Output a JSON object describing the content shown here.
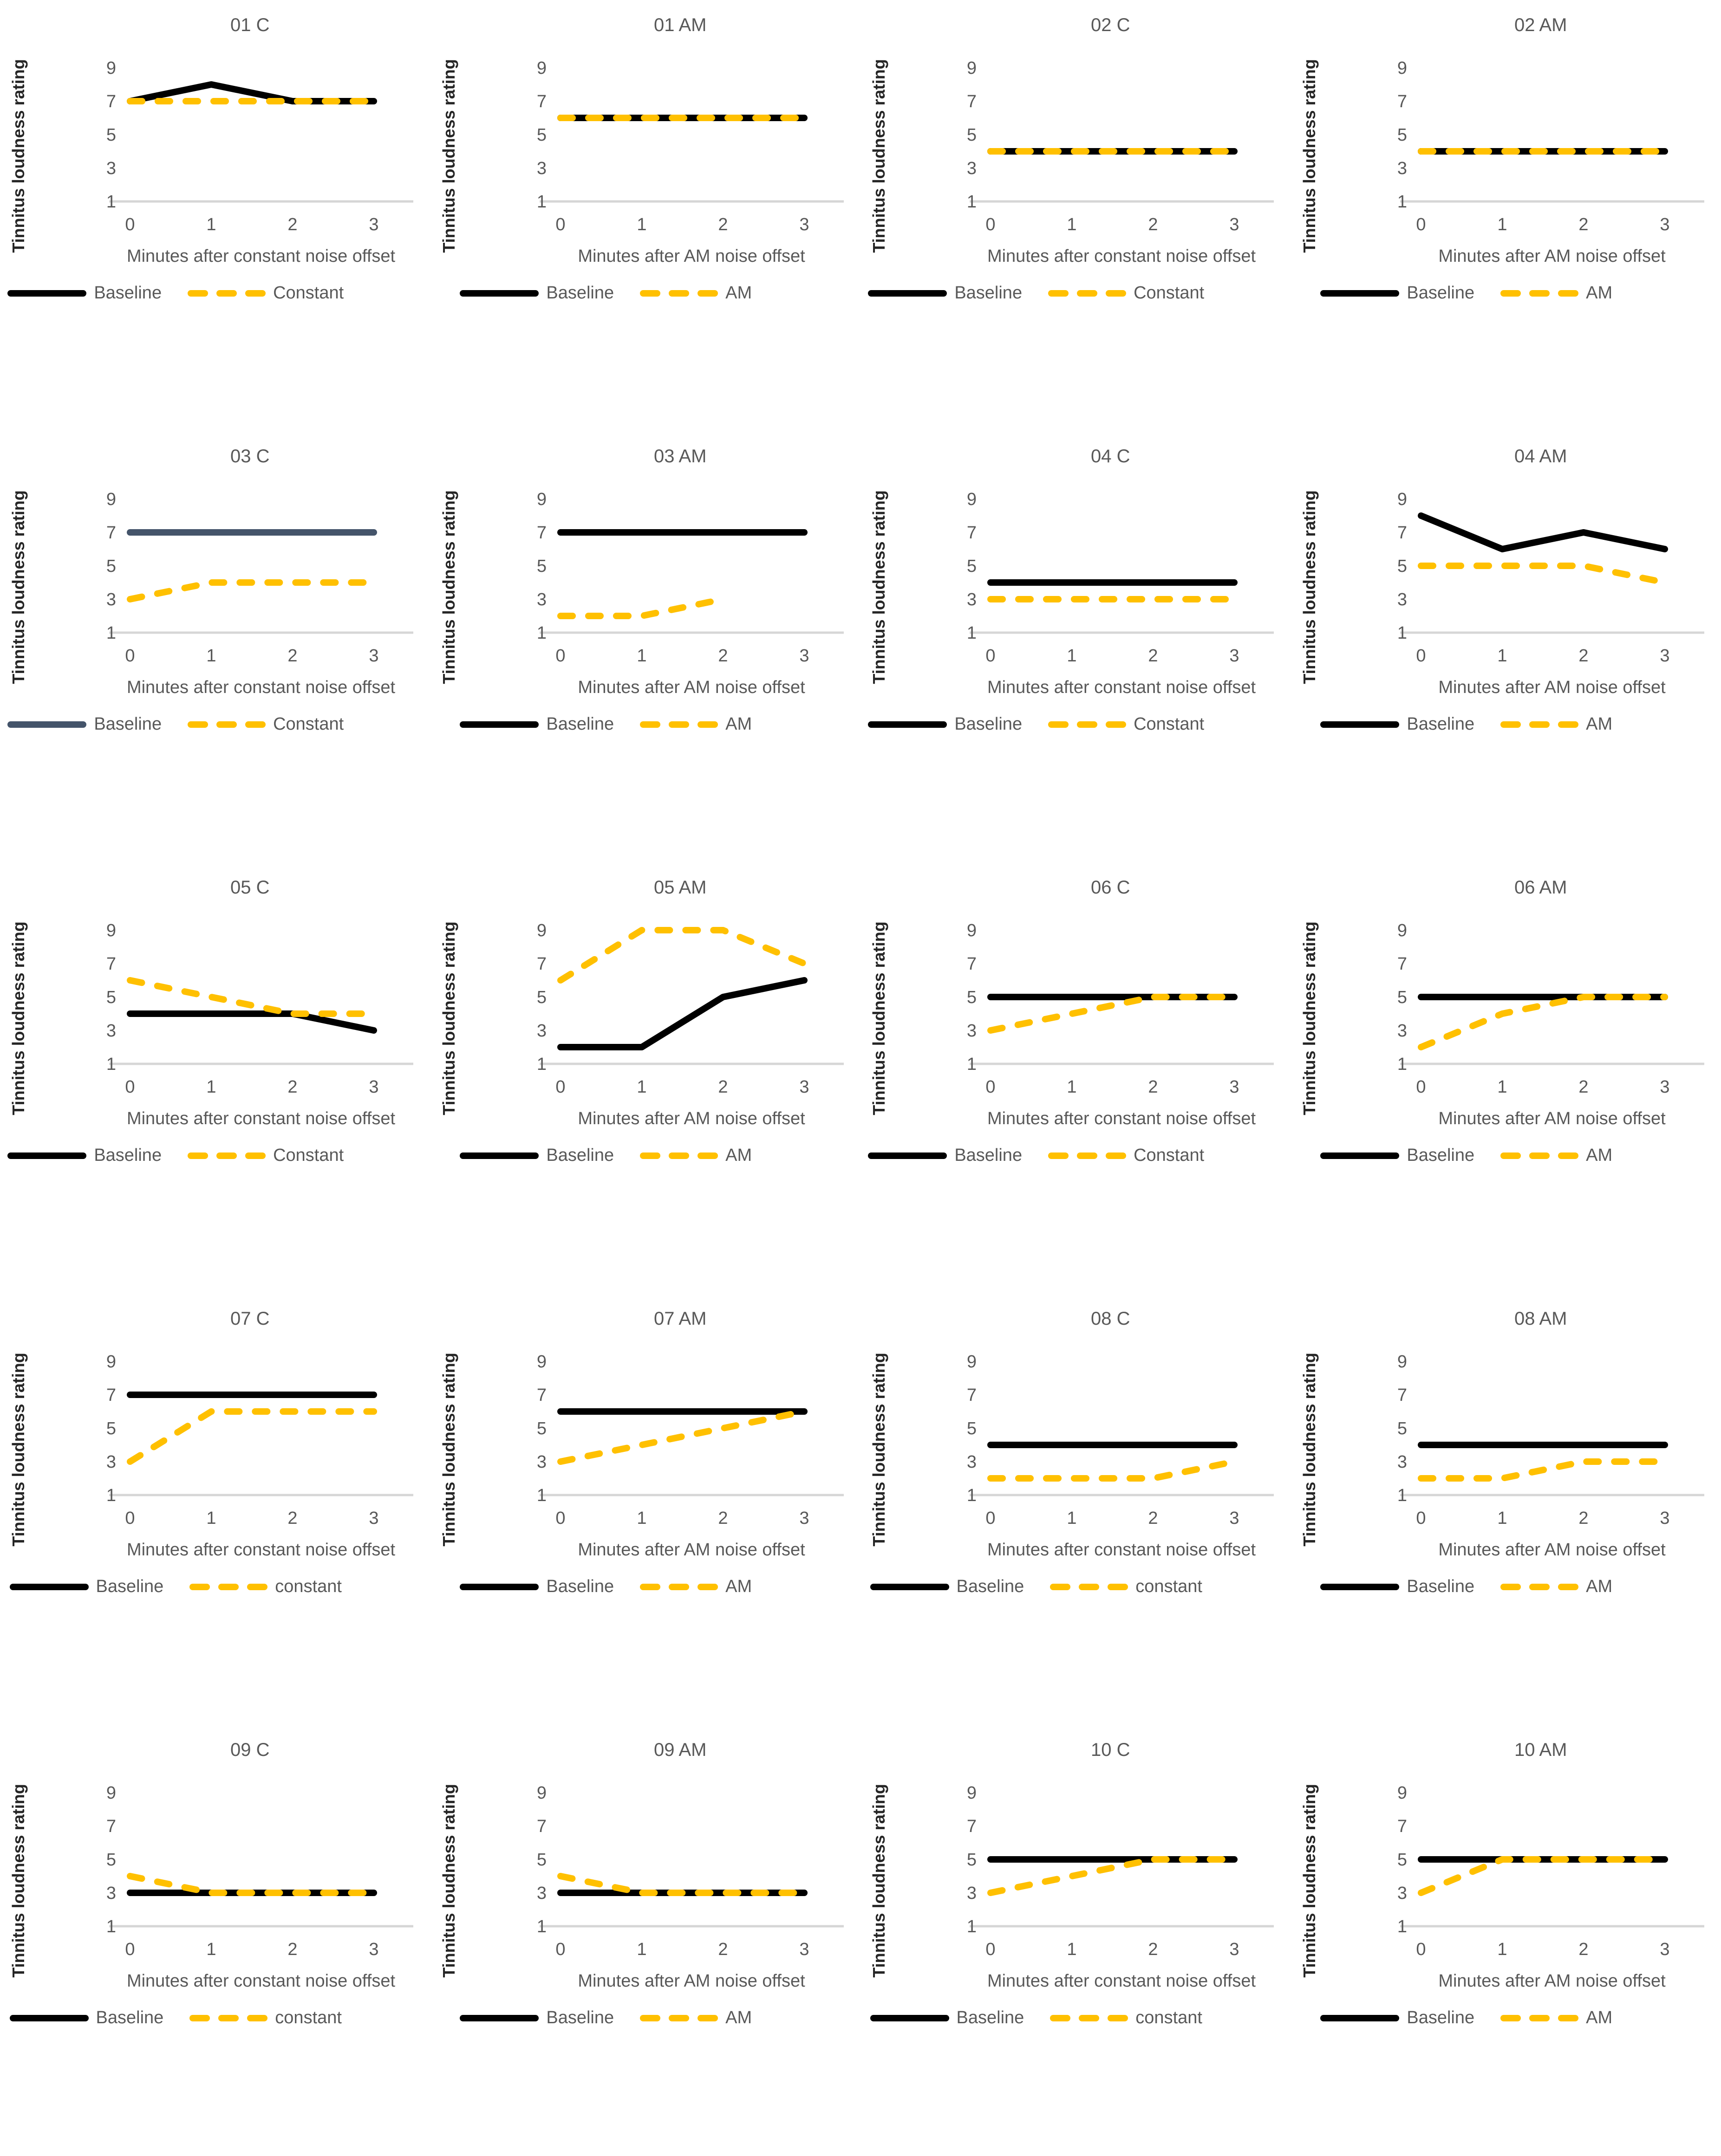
{
  "figure": {
    "ylabel": "Tinnitus loudness rating",
    "yticks": [
      9,
      7,
      5,
      3,
      1
    ],
    "xticks": [
      0,
      1,
      2,
      3
    ],
    "legend_baseline_label": "Baseline",
    "colors": {
      "baseline": "#000000",
      "baseline_alt": "#44546A",
      "treatment": "#FFC000",
      "axis_line": "#D6D6D6",
      "text": "#595959",
      "ylabel_text": "#262626"
    }
  },
  "chart_data": [
    {
      "type": "line",
      "title": "01 C",
      "xlabel": "Minutes after constant noise offset",
      "x": [
        0,
        1,
        2,
        3
      ],
      "ylim": [
        1,
        9
      ],
      "grid": false,
      "legend_position": "bottom",
      "series": [
        {
          "name": "Baseline",
          "values": [
            7,
            8,
            7,
            7
          ],
          "style": "solid"
        },
        {
          "name": "Constant",
          "values": [
            7,
            7,
            7,
            7
          ],
          "style": "dashed"
        }
      ]
    },
    {
      "type": "line",
      "title": "01 AM",
      "xlabel": "Minutes after AM noise offset",
      "x": [
        0,
        1,
        2,
        3
      ],
      "ylim": [
        1,
        9
      ],
      "grid": false,
      "legend_position": "bottom",
      "series": [
        {
          "name": "Baseline",
          "values": [
            6,
            6,
            6,
            6
          ],
          "style": "solid"
        },
        {
          "name": "AM",
          "values": [
            6,
            6,
            6,
            6
          ],
          "style": "dashed"
        }
      ]
    },
    {
      "type": "line",
      "title": "02 C",
      "xlabel": "Minutes after constant noise offset",
      "x": [
        0,
        1,
        2,
        3
      ],
      "ylim": [
        1,
        9
      ],
      "grid": false,
      "legend_position": "bottom",
      "series": [
        {
          "name": "Baseline",
          "values": [
            4,
            4,
            4,
            4
          ],
          "style": "solid"
        },
        {
          "name": "Constant",
          "values": [
            4,
            4,
            4,
            4
          ],
          "style": "dashed"
        }
      ]
    },
    {
      "type": "line",
      "title": "02 AM",
      "xlabel": "Minutes after AM noise offset",
      "x": [
        0,
        1,
        2,
        3
      ],
      "ylim": [
        1,
        9
      ],
      "grid": false,
      "legend_position": "bottom",
      "series": [
        {
          "name": "Baseline",
          "values": [
            4,
            4,
            4,
            4
          ],
          "style": "solid"
        },
        {
          "name": "AM",
          "values": [
            4,
            4,
            4,
            4
          ],
          "style": "dashed"
        }
      ]
    },
    {
      "type": "line",
      "title": "03 C",
      "xlabel": "Minutes after constant noise offset",
      "x": [
        0,
        1,
        2,
        3
      ],
      "ylim": [
        1,
        9
      ],
      "grid": false,
      "legend_position": "bottom",
      "baseline_color": "#44546A",
      "series": [
        {
          "name": "Baseline",
          "values": [
            7,
            7,
            7,
            7
          ],
          "style": "solid"
        },
        {
          "name": "Constant",
          "values": [
            3,
            4,
            4,
            4
          ],
          "style": "dashed"
        }
      ]
    },
    {
      "type": "line",
      "title": "03 AM",
      "xlabel": "Minutes after AM noise offset",
      "x": [
        0,
        1,
        2,
        3
      ],
      "ylim": [
        1,
        9
      ],
      "grid": false,
      "legend_position": "bottom",
      "series": [
        {
          "name": "Baseline",
          "values": [
            7,
            7,
            7,
            7
          ],
          "style": "solid"
        },
        {
          "name": "AM",
          "values": [
            2,
            2,
            3,
            null
          ],
          "style": "dashed"
        }
      ]
    },
    {
      "type": "line",
      "title": "04 C",
      "xlabel": "Minutes after constant noise offset",
      "x": [
        0,
        1,
        2,
        3
      ],
      "ylim": [
        1,
        9
      ],
      "grid": false,
      "legend_position": "bottom",
      "series": [
        {
          "name": "Baseline",
          "values": [
            4,
            4,
            4,
            4
          ],
          "style": "solid"
        },
        {
          "name": "Constant",
          "values": [
            3,
            3,
            3,
            3
          ],
          "style": "dashed"
        }
      ]
    },
    {
      "type": "line",
      "title": "04 AM",
      "xlabel": "Minutes after AM noise offset",
      "x": [
        0,
        1,
        2,
        3
      ],
      "ylim": [
        1,
        9
      ],
      "grid": false,
      "legend_position": "bottom",
      "series": [
        {
          "name": "Baseline",
          "values": [
            8,
            6,
            7,
            6
          ],
          "style": "solid"
        },
        {
          "name": "AM",
          "values": [
            5,
            5,
            5,
            4
          ],
          "style": "dashed"
        }
      ]
    },
    {
      "type": "line",
      "title": "05 C",
      "xlabel": "Minutes after constant noise offset",
      "x": [
        0,
        1,
        2,
        3
      ],
      "ylim": [
        1,
        9
      ],
      "grid": false,
      "legend_position": "bottom",
      "series": [
        {
          "name": "Baseline",
          "values": [
            4,
            4,
            4,
            3
          ],
          "style": "solid"
        },
        {
          "name": "Constant",
          "values": [
            6,
            5,
            4,
            4
          ],
          "style": "dashed"
        }
      ]
    },
    {
      "type": "line",
      "title": "05 AM",
      "xlabel": "Minutes after AM noise offset",
      "x": [
        0,
        1,
        2,
        3
      ],
      "ylim": [
        1,
        9
      ],
      "grid": false,
      "legend_position": "bottom",
      "series": [
        {
          "name": "Baseline",
          "values": [
            2,
            2,
            5,
            6
          ],
          "style": "solid"
        },
        {
          "name": "AM",
          "values": [
            6,
            9,
            9,
            7
          ],
          "style": "dashed"
        }
      ]
    },
    {
      "type": "line",
      "title": "06 C",
      "xlabel": "Minutes after constant noise offset",
      "x": [
        0,
        1,
        2,
        3
      ],
      "ylim": [
        1,
        9
      ],
      "grid": false,
      "legend_position": "bottom",
      "series": [
        {
          "name": "Baseline",
          "values": [
            5,
            5,
            5,
            5
          ],
          "style": "solid"
        },
        {
          "name": "Constant",
          "values": [
            3,
            4,
            5,
            5
          ],
          "style": "dashed"
        }
      ]
    },
    {
      "type": "line",
      "title": "06 AM",
      "xlabel": "Minutes after AM noise offset",
      "x": [
        0,
        1,
        2,
        3
      ],
      "ylim": [
        1,
        9
      ],
      "grid": false,
      "legend_position": "bottom",
      "series": [
        {
          "name": "Baseline",
          "values": [
            5,
            5,
            5,
            5
          ],
          "style": "solid"
        },
        {
          "name": "AM",
          "values": [
            2,
            4,
            5,
            5
          ],
          "style": "dashed"
        }
      ]
    },
    {
      "type": "line",
      "title": "07 C",
      "xlabel": "Minutes after constant noise offset",
      "x": [
        0,
        1,
        2,
        3
      ],
      "ylim": [
        1,
        9
      ],
      "grid": false,
      "legend_position": "bottom",
      "series": [
        {
          "name": "Baseline",
          "values": [
            7,
            7,
            7,
            7
          ],
          "style": "solid"
        },
        {
          "name": "constant",
          "values": [
            3,
            6,
            6,
            6
          ],
          "style": "dashed"
        }
      ]
    },
    {
      "type": "line",
      "title": "07 AM",
      "xlabel": "Minutes after AM noise offset",
      "x": [
        0,
        1,
        2,
        3
      ],
      "ylim": [
        1,
        9
      ],
      "grid": false,
      "legend_position": "bottom",
      "series": [
        {
          "name": "Baseline",
          "values": [
            6,
            6,
            6,
            6
          ],
          "style": "solid"
        },
        {
          "name": "AM",
          "values": [
            3,
            4,
            5,
            6
          ],
          "style": "dashed"
        }
      ]
    },
    {
      "type": "line",
      "title": "08 C",
      "xlabel": "Minutes after constant noise offset",
      "x": [
        0,
        1,
        2,
        3
      ],
      "ylim": [
        1,
        9
      ],
      "grid": false,
      "legend_position": "bottom",
      "series": [
        {
          "name": "Baseline",
          "values": [
            4,
            4,
            4,
            4
          ],
          "style": "solid"
        },
        {
          "name": "constant",
          "values": [
            2,
            2,
            2,
            3
          ],
          "style": "dashed"
        }
      ]
    },
    {
      "type": "line",
      "title": "08 AM",
      "xlabel": "Minutes after AM noise offset",
      "x": [
        0,
        1,
        2,
        3
      ],
      "ylim": [
        1,
        9
      ],
      "grid": false,
      "legend_position": "bottom",
      "series": [
        {
          "name": "Baseline",
          "values": [
            4,
            4,
            4,
            4
          ],
          "style": "solid"
        },
        {
          "name": "AM",
          "values": [
            2,
            2,
            3,
            3
          ],
          "style": "dashed"
        }
      ]
    },
    {
      "type": "line",
      "title": "09 C",
      "xlabel": "Minutes after constant noise offset",
      "x": [
        0,
        1,
        2,
        3
      ],
      "ylim": [
        1,
        9
      ],
      "grid": false,
      "legend_position": "bottom",
      "series": [
        {
          "name": "Baseline",
          "values": [
            3,
            3,
            3,
            3
          ],
          "style": "solid"
        },
        {
          "name": "constant",
          "values": [
            4,
            3,
            3,
            3
          ],
          "style": "dashed"
        }
      ]
    },
    {
      "type": "line",
      "title": "09 AM",
      "xlabel": "Minutes after AM noise offset",
      "x": [
        0,
        1,
        2,
        3
      ],
      "ylim": [
        1,
        9
      ],
      "grid": false,
      "legend_position": "bottom",
      "series": [
        {
          "name": "Baseline",
          "values": [
            3,
            3,
            3,
            3
          ],
          "style": "solid"
        },
        {
          "name": "AM",
          "values": [
            4,
            3,
            3,
            3
          ],
          "style": "dashed"
        }
      ]
    },
    {
      "type": "line",
      "title": "10 C",
      "xlabel": "Minutes after constant noise offset",
      "x": [
        0,
        1,
        2,
        3
      ],
      "ylim": [
        1,
        9
      ],
      "grid": false,
      "legend_position": "bottom",
      "series": [
        {
          "name": "Baseline",
          "values": [
            5,
            5,
            5,
            5
          ],
          "style": "solid"
        },
        {
          "name": "constant",
          "values": [
            3,
            4,
            5,
            5
          ],
          "style": "dashed"
        }
      ]
    },
    {
      "type": "line",
      "title": "10 AM",
      "xlabel": "Minutes after AM noise offset",
      "x": [
        0,
        1,
        2,
        3
      ],
      "ylim": [
        1,
        9
      ],
      "grid": false,
      "legend_position": "bottom",
      "series": [
        {
          "name": "Baseline",
          "values": [
            5,
            5,
            5,
            5
          ],
          "style": "solid"
        },
        {
          "name": "AM",
          "values": [
            3,
            5,
            5,
            5
          ],
          "style": "dashed"
        }
      ]
    }
  ]
}
